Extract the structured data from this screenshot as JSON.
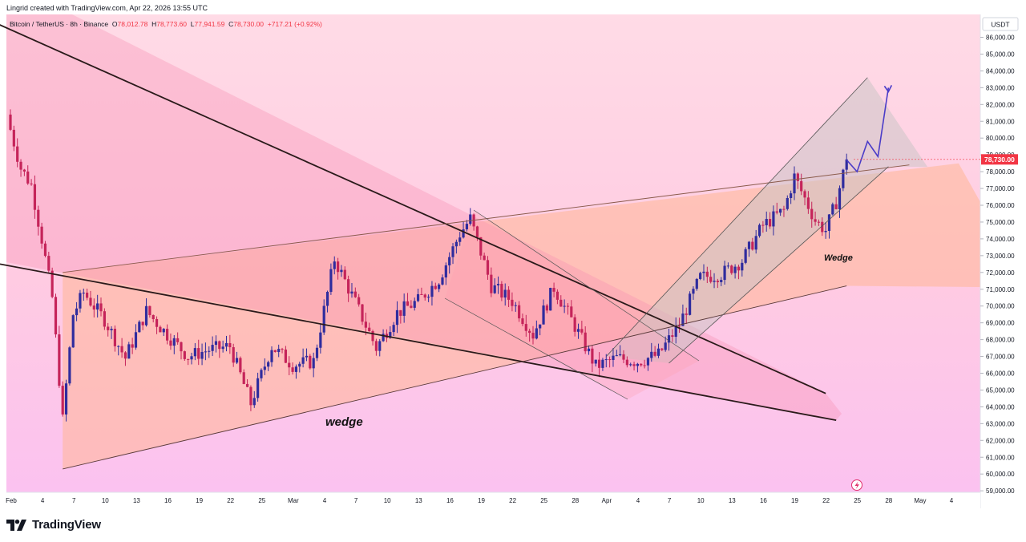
{
  "header": {
    "created_by": "Lingrid created with TradingView.com, Apr 22, 2026 13:55 UTC"
  },
  "legend": {
    "symbol": "Bitcoin / TetherUS · 8h · Binance",
    "open_label": "O",
    "open": "78,012.78",
    "high_label": "H",
    "high": "78,773.60",
    "low_label": "L",
    "low": "77,941.59",
    "close_label": "C",
    "close": "78,730.00",
    "change": "+717.21 (+0.92%)"
  },
  "price_axis": {
    "currency": "USDT",
    "last_price": "78,730.00",
    "ticks": [
      "86,000.00",
      "85,000.00",
      "84,000.00",
      "83,000.00",
      "82,000.00",
      "81,000.00",
      "80,000.00",
      "79,000.00",
      "78,000.00",
      "77,000.00",
      "76,000.00",
      "75,000.00",
      "74,000.00",
      "73,000.00",
      "72,000.00",
      "71,000.00",
      "70,000.00",
      "69,000.00",
      "68,000.00",
      "67,000.00",
      "66,000.00",
      "65,000.00",
      "64,000.00",
      "63,000.00",
      "62,000.00",
      "61,000.00",
      "60,000.00",
      "59,000.00"
    ]
  },
  "time_axis": {
    "ticks": [
      "Feb",
      "4",
      "7",
      "10",
      "13",
      "16",
      "19",
      "22",
      "25",
      "Mar",
      "4",
      "7",
      "10",
      "13",
      "16",
      "19",
      "22",
      "25",
      "28",
      "Apr",
      "4",
      "7",
      "10",
      "13",
      "16",
      "19",
      "22",
      "25",
      "28",
      "May",
      "4"
    ]
  },
  "annotations": {
    "wedge_lower": "wedge",
    "wedge_upper": "Wedge"
  },
  "brand": {
    "name": "TradingView"
  },
  "colors": {
    "up": "#2f2c9e",
    "down": "#c5245a",
    "last_price_bg": "#f23645",
    "projection": "#4a3cc8"
  },
  "chart_data": {
    "type": "candlestick",
    "title": "Bitcoin / TetherUS · 8h · Binance",
    "timeframe": "8h",
    "ylim": [
      59000,
      86500
    ],
    "x_range": [
      "2026-02-01",
      "2026-05-04"
    ],
    "last_price": 78730,
    "ohlc_last": {
      "open": 78012.78,
      "high": 78773.6,
      "low": 77941.59,
      "close": 78730.0,
      "change": 717.21,
      "change_pct": 0.92
    },
    "approximate_closes": [
      {
        "date": "Feb 1",
        "close": 80500
      },
      {
        "date": "Feb 2",
        "close": 78200
      },
      {
        "date": "Feb 3",
        "close": 77200
      },
      {
        "date": "Feb 4",
        "close": 74000
      },
      {
        "date": "Feb 5",
        "close": 70500
      },
      {
        "date": "Feb 6",
        "close": 63200
      },
      {
        "date": "Feb 7",
        "close": 69500
      },
      {
        "date": "Feb 8",
        "close": 70800
      },
      {
        "date": "Feb 10",
        "close": 69200
      },
      {
        "date": "Feb 12",
        "close": 66900
      },
      {
        "date": "Feb 14",
        "close": 69700
      },
      {
        "date": "Feb 16",
        "close": 68300
      },
      {
        "date": "Feb 18",
        "close": 67000
      },
      {
        "date": "Feb 20",
        "close": 67400
      },
      {
        "date": "Feb 22",
        "close": 67600
      },
      {
        "date": "Feb 24",
        "close": 64200
      },
      {
        "date": "Feb 26",
        "close": 67600
      },
      {
        "date": "Feb 28",
        "close": 66500
      },
      {
        "date": "Mar 2",
        "close": 66700
      },
      {
        "date": "Mar 4",
        "close": 72800
      },
      {
        "date": "Mar 6",
        "close": 70200
      },
      {
        "date": "Mar 8",
        "close": 67500
      },
      {
        "date": "Mar 10",
        "close": 69600
      },
      {
        "date": "Mar 12",
        "close": 70300
      },
      {
        "date": "Mar 14",
        "close": 71600
      },
      {
        "date": "Mar 16",
        "close": 74300
      },
      {
        "date": "Mar 17",
        "close": 75200
      },
      {
        "date": "Mar 19",
        "close": 71200
      },
      {
        "date": "Mar 21",
        "close": 70300
      },
      {
        "date": "Mar 23",
        "close": 68300
      },
      {
        "date": "Mar 25",
        "close": 71100
      },
      {
        "date": "Mar 27",
        "close": 68800
      },
      {
        "date": "Mar 29",
        "close": 66400
      },
      {
        "date": "Mar 31",
        "close": 66900
      },
      {
        "date": "Apr 2",
        "close": 66700
      },
      {
        "date": "Apr 4",
        "close": 67100
      },
      {
        "date": "Apr 6",
        "close": 68900
      },
      {
        "date": "Apr 8",
        "close": 71700
      },
      {
        "date": "Apr 10",
        "close": 71900
      },
      {
        "date": "Apr 12",
        "close": 72700
      },
      {
        "date": "Apr 14",
        "close": 74800
      },
      {
        "date": "Apr 16",
        "close": 75700
      },
      {
        "date": "Apr 17",
        "close": 77700
      },
      {
        "date": "Apr 19",
        "close": 75100
      },
      {
        "date": "Apr 20",
        "close": 74500
      },
      {
        "date": "Apr 21",
        "close": 76200
      },
      {
        "date": "Apr 22",
        "close": 78730
      }
    ],
    "drawings": {
      "lower_wedge": {
        "label": "wedge",
        "upper_line": [
          [
            "Feb 6",
            72000
          ],
          [
            "Apr 28",
            78400
          ]
        ],
        "lower_line": [
          [
            "Feb 6",
            60300
          ],
          [
            "Apr 22",
            71200
          ]
        ]
      },
      "upper_channel": {
        "label": "Wedge",
        "lines": [
          [
            [
              "Mar 30",
              67000
            ],
            [
              "Apr 24",
              83600
            ]
          ],
          [
            [
              "Apr 5",
              66600
            ],
            [
              "Apr 26",
              78300
            ]
          ]
        ]
      },
      "trendlines": [
        [
          [
            "Jan 25",
            88400
          ],
          [
            "Apr 20",
            64800
          ]
        ],
        [
          [
            "Jan 31",
            72500
          ],
          [
            "Apr 21",
            63200
          ]
        ]
      ],
      "projection_path": [
        [
          "Apr 22",
          78700
        ],
        [
          "Apr 23",
          78000
        ],
        [
          "Apr 24",
          79800
        ],
        [
          "Apr 25",
          78900
        ],
        [
          "Apr 26",
          83000
        ]
      ]
    }
  }
}
